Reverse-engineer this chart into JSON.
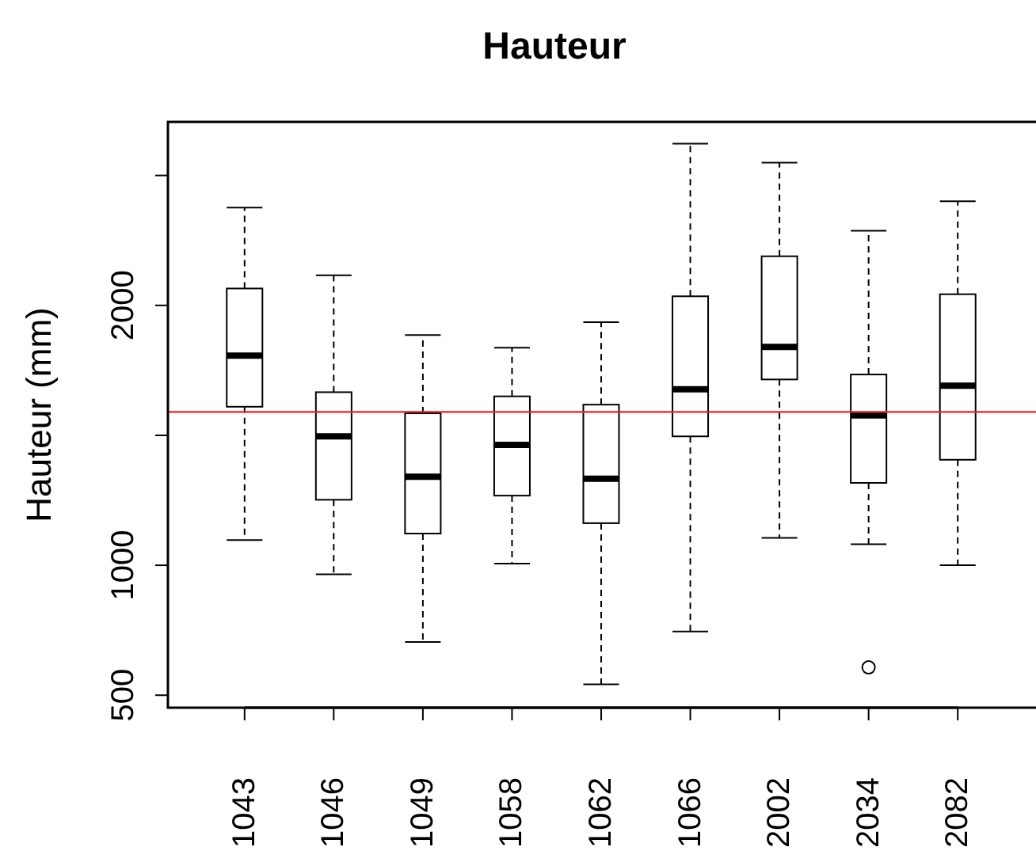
{
  "chart_data": {
    "type": "box",
    "title": "Hauteur",
    "ylabel": "Hauteur (mm)",
    "categories": [
      "1043",
      "1046",
      "1049",
      "1058",
      "1062",
      "1066",
      "2002",
      "2034",
      "2082"
    ],
    "boxes": [
      {
        "low": 1097,
        "q1": 1610,
        "median": 1807,
        "q3": 2065,
        "high": 2376
      },
      {
        "low": 965,
        "q1": 1252,
        "median": 1496,
        "q3": 1666,
        "high": 2116
      },
      {
        "low": 705,
        "q1": 1122,
        "median": 1341,
        "q3": 1585,
        "high": 1886
      },
      {
        "low": 1006,
        "q1": 1268,
        "median": 1463,
        "q3": 1650,
        "high": 1837
      },
      {
        "low": 542,
        "q1": 1162,
        "median": 1333,
        "q3": 1618,
        "high": 1935
      },
      {
        "low": 745,
        "q1": 1496,
        "median": 1677,
        "q3": 2035,
        "high": 2622
      },
      {
        "low": 1105,
        "q1": 1715,
        "median": 1840,
        "q3": 2189,
        "high": 2549
      },
      {
        "low": 1081,
        "q1": 1317,
        "median": 1577,
        "q3": 1734,
        "high": 2287,
        "outliers": [
          607
        ]
      },
      {
        "low": 1000,
        "q1": 1406,
        "median": 1691,
        "q3": 2043,
        "high": 2401
      }
    ],
    "ylim": [
      452,
      2706
    ],
    "yticks": [
      500,
      1000,
      {
        "value": 1500,
        "label": null
      },
      2000,
      {
        "value": 2500,
        "label": null
      }
    ],
    "ref_lines": [
      {
        "axis": "y",
        "value": 1590,
        "color": "#e8232a"
      }
    ],
    "grid": false
  }
}
